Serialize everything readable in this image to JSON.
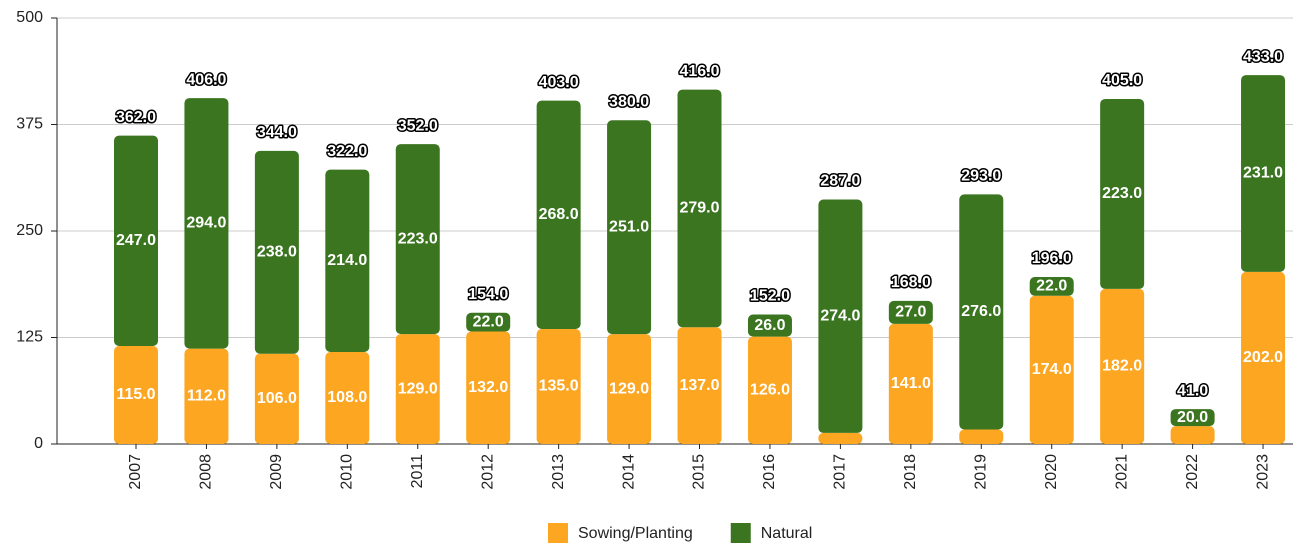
{
  "chart_data": {
    "type": "stacked_bar",
    "categories": [
      "2007",
      "2008",
      "2009",
      "2010",
      "2011",
      "2012",
      "2013",
      "2014",
      "2015",
      "2016",
      "2017",
      "2018",
      "2019",
      "2020",
      "2021",
      "2022",
      "2023"
    ],
    "series": [
      {
        "name": "Sowing/Planting",
        "color": "#fca622",
        "values": [
          115,
          112,
          106,
          108,
          129,
          132,
          135,
          129,
          137,
          126,
          13,
          141,
          17,
          174,
          182,
          21,
          202
        ],
        "value_labels": [
          "115.0",
          "112.0",
          "106.0",
          "108.0",
          "129.0",
          "132.0",
          "135.0",
          "129.0",
          "137.0",
          "126.0",
          null,
          "141.0",
          null,
          "174.0",
          "182.0",
          null,
          "202.0"
        ]
      },
      {
        "name": "Natural",
        "color": "#3b7520",
        "values": [
          247,
          294,
          238,
          214,
          223,
          22,
          268,
          251,
          279,
          26,
          274,
          27,
          276,
          22,
          223,
          20,
          231
        ],
        "value_labels": [
          "247.0",
          "294.0",
          "238.0",
          "214.0",
          "223.0",
          "22.0",
          "268.0",
          "251.0",
          "279.0",
          "26.0",
          "274.0",
          "27.0",
          "276.0",
          "22.0",
          "223.0",
          "20.0",
          "231.0"
        ]
      }
    ],
    "totals": {
      "values": [
        362,
        406,
        344,
        322,
        352,
        154,
        403,
        380,
        416,
        152,
        287,
        168,
        293,
        196,
        405,
        41,
        433
      ],
      "value_labels": [
        "362.0",
        "406.0",
        "344.0",
        "322.0",
        "352.0",
        "154.0",
        "403.0",
        "380.0",
        "416.0",
        "152.0",
        "287.0",
        "168.0",
        "293.0",
        "196.0",
        "405.0",
        "41.0",
        "433.0"
      ]
    },
    "ylim": [
      0,
      500
    ],
    "yticks": [
      0,
      125,
      250,
      375,
      500
    ],
    "grid": true,
    "legend": "bottom"
  }
}
